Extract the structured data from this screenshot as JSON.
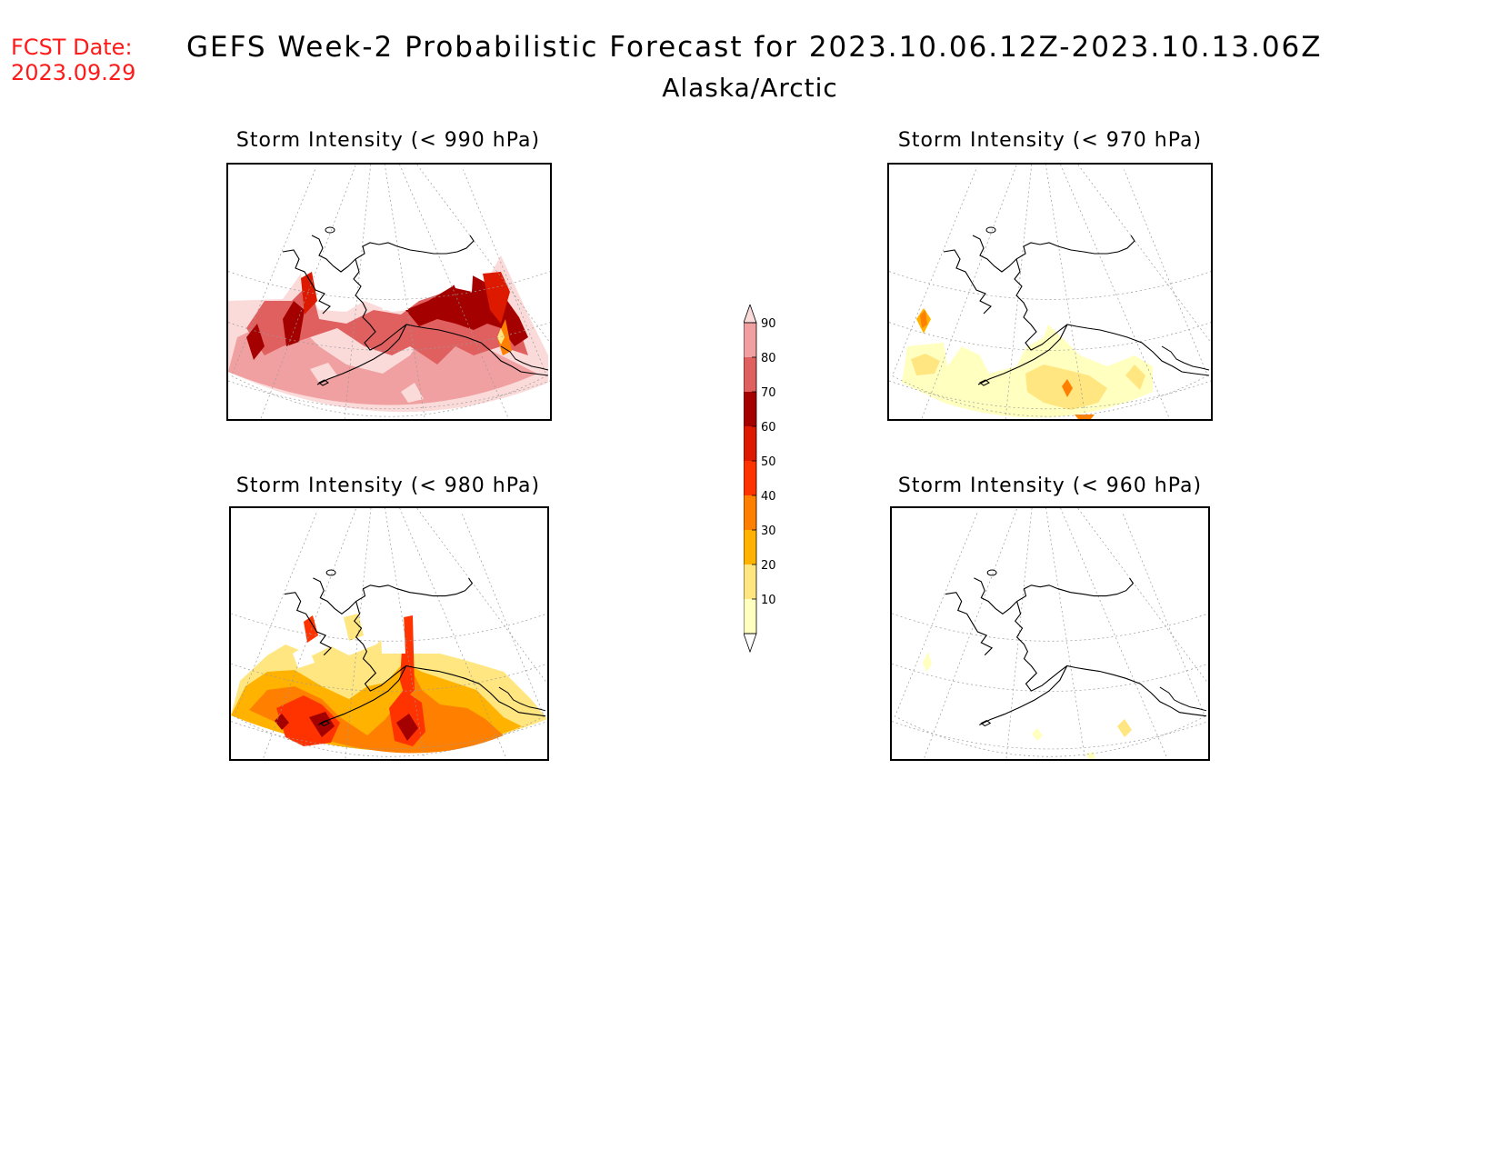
{
  "header": {
    "fcst_label": "FCST Date:",
    "fcst_date": "2023.09.29",
    "title": "GEFS Week-2 Probabilistic Forecast for 2023.10.06.12Z-2023.10.13.06Z",
    "subtitle": "Alaska/Arctic"
  },
  "panels": [
    {
      "id": "p990",
      "title": "Storm Intensity (< 990 hPa)",
      "threshold_hpa": 990,
      "dominant_probability": "70-90"
    },
    {
      "id": "p970",
      "title": "Storm Intensity (< 970 hPa)",
      "threshold_hpa": 970,
      "dominant_probability": "10-30"
    },
    {
      "id": "p980",
      "title": "Storm Intensity (< 980 hPa)",
      "threshold_hpa": 980,
      "dominant_probability": "30-60"
    },
    {
      "id": "p960",
      "title": "Storm Intensity (< 960 hPa)",
      "threshold_hpa": 960,
      "dominant_probability": "10-20"
    }
  ],
  "colorbar": {
    "levels": [
      10,
      20,
      30,
      40,
      50,
      60,
      70,
      80,
      90
    ],
    "labels": [
      "10",
      "20",
      "30",
      "40",
      "50",
      "60",
      "70",
      "80",
      "90"
    ],
    "colors": [
      "#ffffc0",
      "#ffe680",
      "#ffb300",
      "#ff8000",
      "#ff3300",
      "#dd1a00",
      "#a50000",
      "#e06060",
      "#f0a0a0",
      "#fbdada"
    ]
  }
}
